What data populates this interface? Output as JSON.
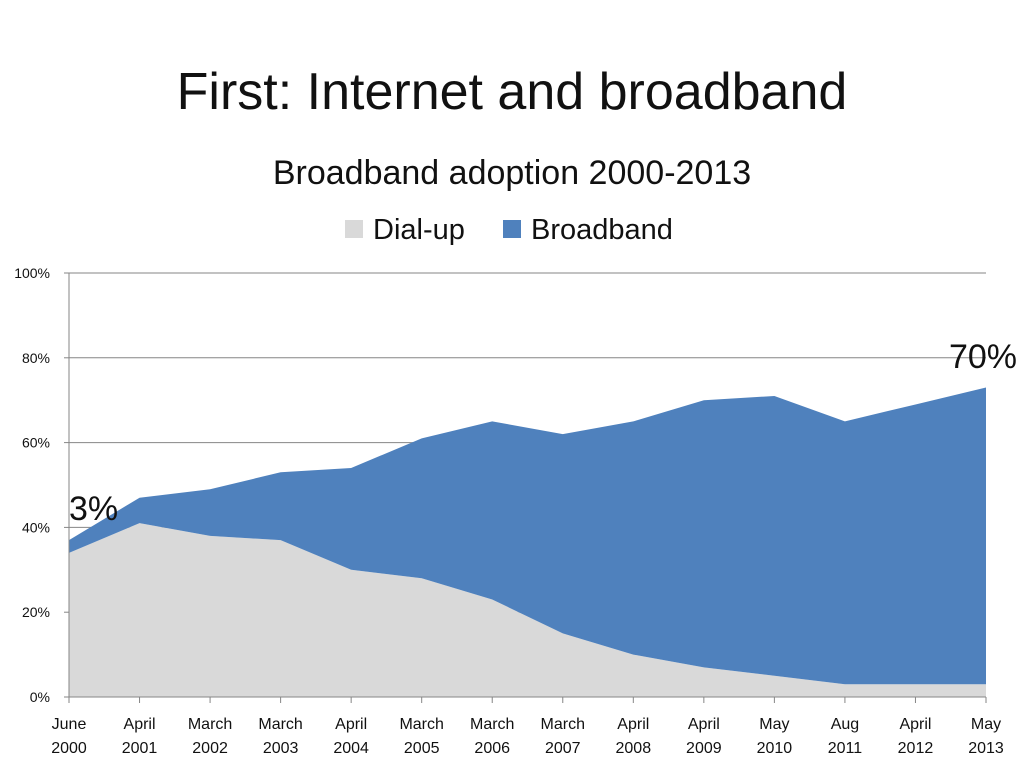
{
  "slide_title": "First: Internet and broadband",
  "chart_data": {
    "type": "area",
    "stacked": true,
    "title": "Broadband adoption 2000-2013",
    "categories": [
      [
        "June",
        "2000"
      ],
      [
        "April",
        "2001"
      ],
      [
        "March",
        "2002"
      ],
      [
        "March",
        "2003"
      ],
      [
        "April",
        "2004"
      ],
      [
        "March",
        "2005"
      ],
      [
        "March",
        "2006"
      ],
      [
        "March",
        "2007"
      ],
      [
        "April",
        "2008"
      ],
      [
        "April",
        "2009"
      ],
      [
        "May",
        "2010"
      ],
      [
        "Aug",
        "2011"
      ],
      [
        "April",
        "2012"
      ],
      [
        "May",
        "2013"
      ]
    ],
    "series": [
      {
        "name": "Dial-up",
        "color": "#d9d9d9",
        "values": [
          34,
          41,
          38,
          37,
          30,
          28,
          23,
          15,
          10,
          7,
          5,
          3,
          3,
          3
        ]
      },
      {
        "name": "Broadband",
        "color": "#4f81bd",
        "values": [
          3,
          6,
          11,
          16,
          24,
          33,
          42,
          47,
          55,
          63,
          66,
          62,
          66,
          70
        ]
      }
    ],
    "ylim": [
      0,
      100
    ],
    "yticks": [
      "0%",
      "20%",
      "40%",
      "60%",
      "80%",
      "100%"
    ],
    "grid": true,
    "legend": "top",
    "annotations": [
      {
        "text": "3%",
        "category": 0
      },
      {
        "text": "70%",
        "category": 13
      }
    ]
  }
}
